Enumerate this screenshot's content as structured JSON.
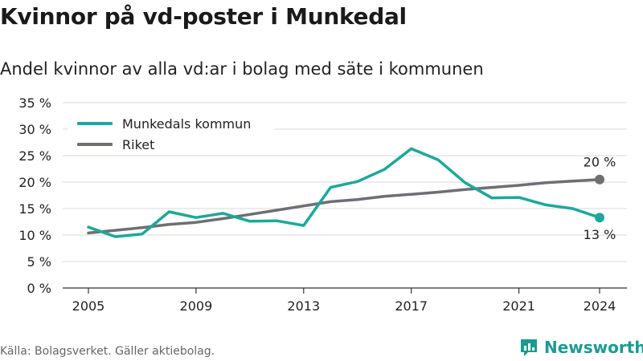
{
  "title": "Kvinnor på vd-poster i Munkedal",
  "subtitle": "Andel kvinnor av alla vd:ar i bolag med säte i kommunen",
  "source": "Källa: Bolagsverket. Gäller aktiebolag.",
  "brand": "Newsworthy",
  "colors": {
    "munkedal": "#1aa99c",
    "riket": "#6e6e74",
    "grid": "#d9d9d9",
    "axis": "#333333"
  },
  "chart_data": {
    "type": "line",
    "x": [
      2005,
      2006,
      2007,
      2008,
      2009,
      2010,
      2011,
      2012,
      2013,
      2014,
      2015,
      2016,
      2017,
      2018,
      2019,
      2020,
      2021,
      2022,
      2023,
      2024
    ],
    "series": [
      {
        "name": "Munkedals kommun",
        "values": [
          11.5,
          9.7,
          10.2,
          14.4,
          13.3,
          14.1,
          12.6,
          12.7,
          11.8,
          19.0,
          20.1,
          22.4,
          26.3,
          24.2,
          19.9,
          17.0,
          17.1,
          15.7,
          15.0,
          13.3
        ]
      },
      {
        "name": "Riket",
        "values": [
          10.4,
          10.9,
          11.4,
          12.0,
          12.4,
          13.1,
          13.9,
          14.7,
          15.5,
          16.3,
          16.7,
          17.3,
          17.7,
          18.1,
          18.6,
          19.0,
          19.4,
          19.9,
          20.2,
          20.5
        ]
      }
    ],
    "ylim": [
      0,
      35
    ],
    "yticks": [
      0,
      5,
      10,
      15,
      20,
      25,
      30,
      35
    ],
    "ytick_labels": [
      "0 %",
      "5 %",
      "10 %",
      "15 %",
      "20 %",
      "25 %",
      "30 %",
      "35 %"
    ],
    "xticks": [
      2005,
      2009,
      2013,
      2017,
      2021,
      2024
    ],
    "xtick_labels": [
      "2005",
      "2009",
      "2013",
      "2017",
      "2021",
      "2024"
    ],
    "end_labels": {
      "riket": "20 %",
      "munkedal": "13 %"
    },
    "grid": true,
    "legend_position": "top-left"
  }
}
